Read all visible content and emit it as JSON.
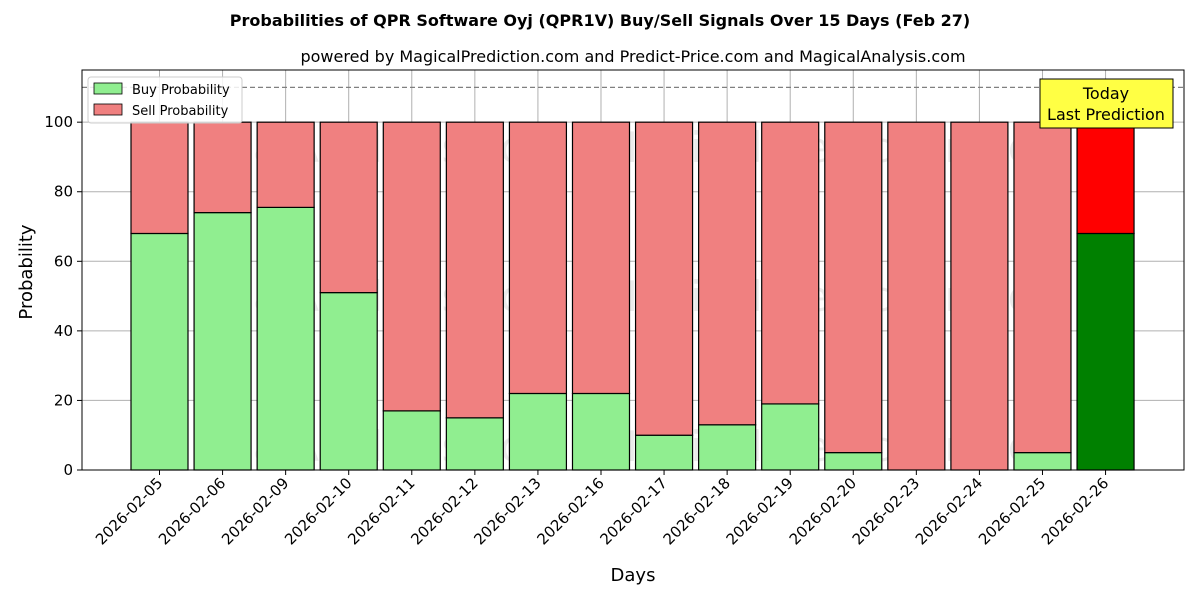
{
  "chart_data": {
    "type": "bar",
    "stacked": true,
    "title": "Probabilities of QPR Software Oyj (QPR1V) Buy/Sell Signals Over 15 Days (Feb 27)",
    "subtitle": "powered by MagicalPrediction.com and Predict-Price.com and MagicalAnalysis.com",
    "xlabel": "Days",
    "ylabel": "Probability",
    "ylim": [
      0,
      115
    ],
    "yticks": [
      0,
      20,
      40,
      60,
      80,
      100
    ],
    "grid": true,
    "legend_position": "top-left",
    "reference_line": 110,
    "categories": [
      "2026-02-05",
      "2026-02-06",
      "2026-02-09",
      "2026-02-10",
      "2026-02-11",
      "2026-02-12",
      "2026-02-13",
      "2026-02-16",
      "2026-02-17",
      "2026-02-18",
      "2026-02-19",
      "2026-02-20",
      "2026-02-23",
      "2026-02-24",
      "2026-02-25",
      "2026-02-26"
    ],
    "series": [
      {
        "name": "Buy Probability",
        "color": "#90EE90",
        "values": [
          68,
          74,
          75.5,
          51,
          17,
          15,
          22,
          22,
          10,
          13,
          19,
          5,
          0,
          0,
          5,
          68
        ]
      },
      {
        "name": "Sell Probability",
        "color": "#F08080",
        "values": [
          32,
          26,
          24.5,
          49,
          83,
          85,
          78,
          78,
          90,
          87,
          81,
          95,
          100,
          100,
          95,
          32
        ]
      }
    ],
    "highlight": {
      "index": 15,
      "buy_color": "#008000",
      "sell_color": "#FF0000"
    },
    "annotation": {
      "line1": "Today",
      "line2": "Last Prediction",
      "color": "#FFFF44"
    },
    "watermarks": [
      "MagicalAnalysis.com",
      "MagicalPrediction.com"
    ]
  }
}
